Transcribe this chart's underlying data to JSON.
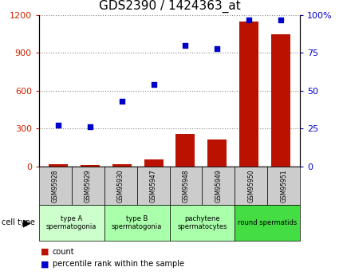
{
  "title": "GDS2390 / 1424363_at",
  "samples": [
    "GSM95928",
    "GSM95929",
    "GSM95930",
    "GSM95947",
    "GSM95948",
    "GSM95949",
    "GSM95950",
    "GSM95951"
  ],
  "counts": [
    15,
    12,
    20,
    55,
    260,
    215,
    1150,
    1050
  ],
  "percentile_ranks": [
    27,
    26,
    43,
    54,
    80,
    78,
    97,
    97
  ],
  "left_ylim": [
    0,
    1200
  ],
  "left_yticks": [
    0,
    300,
    600,
    900,
    1200
  ],
  "right_ylim": [
    0,
    100
  ],
  "right_yticks": [
    0,
    25,
    50,
    75,
    100
  ],
  "right_yticklabels": [
    "0",
    "25",
    "50",
    "75",
    "100%"
  ],
  "bar_color": "#bb1100",
  "dot_color": "#0000cc",
  "cell_type_groups": [
    {
      "label": "type A\nspermatogonia",
      "start": 0,
      "end": 2,
      "color": "#ccffcc"
    },
    {
      "label": "type B\nspermatogonia",
      "start": 2,
      "end": 4,
      "color": "#aaffaa"
    },
    {
      "label": "pachytene\nspermatocytes",
      "start": 4,
      "end": 6,
      "color": "#aaffaa"
    },
    {
      "label": "round spermatids",
      "start": 6,
      "end": 8,
      "color": "#44dd44"
    }
  ],
  "left_tick_color": "#cc2200",
  "right_tick_color": "#0000cc",
  "title_fontsize": 11,
  "grid_color": "#888888",
  "sample_box_color": "#cccccc",
  "legend_count_color": "#bb1100",
  "legend_pct_color": "#0000cc",
  "n_samples": 8
}
